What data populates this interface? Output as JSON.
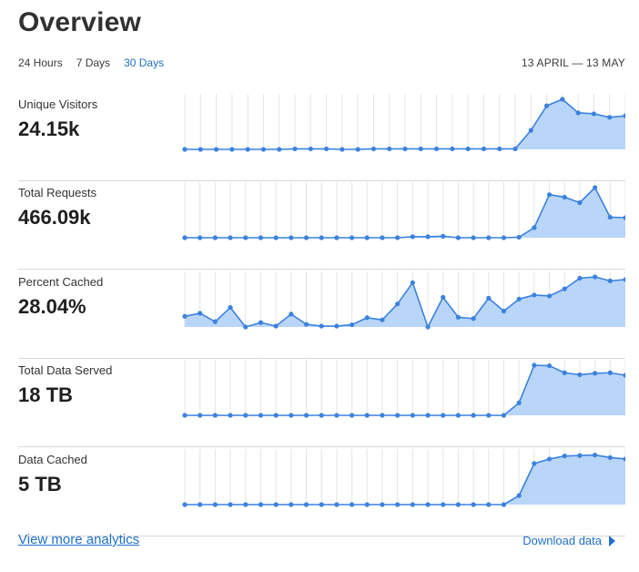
{
  "header": {
    "title": "Overview",
    "tabs": [
      {
        "label": "24 Hours",
        "active": false
      },
      {
        "label": "7 Days",
        "active": false
      },
      {
        "label": "30 Days",
        "active": true
      }
    ],
    "date_range": "13 APRIL — 13 MAY"
  },
  "colors": {
    "accent": "#1f6fc8",
    "line": "#3b82dd",
    "fill": "#b9d5f8",
    "grid": "#e4e4e4"
  },
  "metrics": [
    {
      "label": "Unique Visitors",
      "value": "24.15k",
      "series": [
        0,
        0,
        0,
        0,
        0,
        0,
        0,
        0.01,
        0.01,
        0.01,
        0,
        0,
        0.01,
        0.01,
        0.01,
        0.01,
        0.01,
        0.01,
        0.01,
        0.01,
        0.01,
        0.01,
        0.38,
        0.87,
        1,
        0.73,
        0.71,
        0.64,
        0.67
      ]
    },
    {
      "label": "Total Requests",
      "value": "466.09k",
      "series": [
        0,
        0,
        0,
        0,
        0,
        0,
        0,
        0,
        0,
        0,
        0,
        0,
        0,
        0,
        0,
        0.02,
        0.02,
        0.03,
        0,
        0,
        0,
        0,
        0.01,
        0.2,
        0.86,
        0.81,
        0.7,
        1,
        0.41,
        0.4
      ]
    },
    {
      "label": "Percent Cached",
      "value": "28.04%",
      "series": [
        0.24,
        0.31,
        0.12,
        0.44,
        0.0,
        0.1,
        0.02,
        0.29,
        0.06,
        0.02,
        0.02,
        0.05,
        0.21,
        0.16,
        0.52,
        1,
        0.0,
        0.67,
        0.22,
        0.19,
        0.65,
        0.36,
        0.63,
        0.72,
        0.7,
        0.86,
        1.1,
        1.13,
        1.04,
        1.07
      ]
    },
    {
      "label": "Total Data Served",
      "value": "18 TB",
      "series": [
        0,
        0,
        0,
        0,
        0,
        0,
        0,
        0,
        0,
        0,
        0,
        0,
        0,
        0,
        0,
        0,
        0,
        0,
        0,
        0,
        0,
        0,
        0.25,
        1,
        0.99,
        0.85,
        0.81,
        0.84,
        0.85,
        0.8
      ]
    },
    {
      "label": "Data Cached",
      "value": "5 TB",
      "series": [
        0,
        0,
        0,
        0,
        0,
        0,
        0,
        0,
        0,
        0,
        0,
        0,
        0,
        0,
        0,
        0,
        0,
        0,
        0,
        0,
        0,
        0,
        0.18,
        0.82,
        0.91,
        0.97,
        0.98,
        0.99,
        0.94,
        0.91
      ]
    }
  ],
  "footer": {
    "view_more": "View more analytics",
    "download": "Download data"
  }
}
